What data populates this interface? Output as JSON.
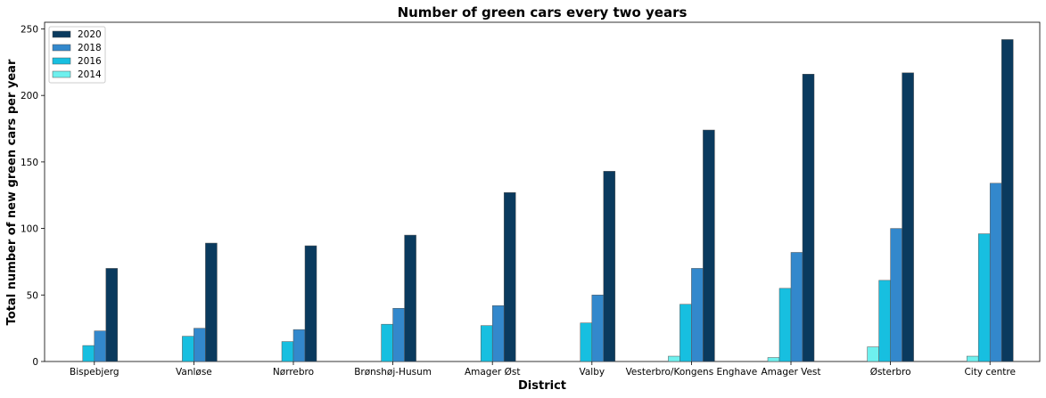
{
  "chart_data": {
    "type": "bar",
    "title": "Number of green cars every two years",
    "xlabel": "District",
    "ylabel": "Total number of new green cars per year",
    "ylim": [
      0,
      255
    ],
    "yticks": [
      0,
      50,
      100,
      150,
      200,
      250
    ],
    "grid": false,
    "legend_position": "top-left",
    "categories": [
      "Bispebjerg",
      "Vanløse",
      "Nørrebro",
      "Brønshøj-Husum",
      "Amager Øst",
      "Valby",
      "Vesterbro/Kongens Enghave",
      "Amager Vest",
      "Østerbro",
      "City centre"
    ],
    "series": [
      {
        "name": "2014",
        "color": "#6ef0ee",
        "values": [
          0,
          0,
          0,
          0,
          0,
          0,
          4,
          3,
          11,
          4
        ]
      },
      {
        "name": "2016",
        "color": "#17bfe0",
        "values": [
          12,
          19,
          15,
          28,
          27,
          29,
          43,
          55,
          61,
          96
        ]
      },
      {
        "name": "2018",
        "color": "#3388cc",
        "values": [
          23,
          25,
          24,
          40,
          42,
          50,
          70,
          82,
          100,
          134
        ]
      },
      {
        "name": "2020",
        "color": "#0a3a5e",
        "values": [
          70,
          89,
          87,
          95,
          127,
          143,
          174,
          216,
          217,
          242
        ]
      }
    ],
    "legend_order": [
      "2020",
      "2018",
      "2016",
      "2014"
    ]
  }
}
